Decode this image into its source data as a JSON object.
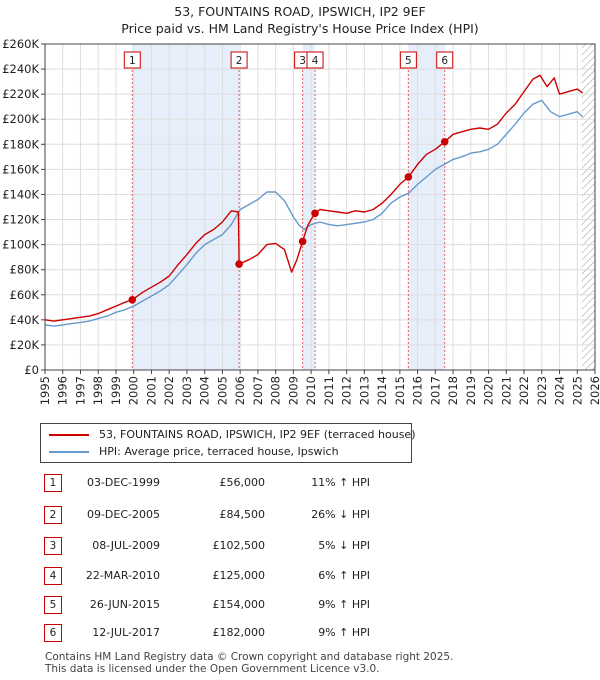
{
  "title_line1": "53, FOUNTAINS ROAD, IPSWICH, IP2 9EF",
  "title_line2": "Price paid vs. HM Land Registry's House Price Index (HPI)",
  "chart_data": {
    "type": "line",
    "xlim": [
      1995,
      2026
    ],
    "ylim": [
      0,
      260000
    ],
    "y_ticks": [
      0,
      20000,
      40000,
      60000,
      80000,
      100000,
      120000,
      140000,
      160000,
      180000,
      200000,
      220000,
      240000,
      260000
    ],
    "y_tick_labels": [
      "£0",
      "£20K",
      "£40K",
      "£60K",
      "£80K",
      "£100K",
      "£120K",
      "£140K",
      "£160K",
      "£180K",
      "£200K",
      "£220K",
      "£240K",
      "£260K"
    ],
    "x_ticks": [
      1995,
      1996,
      1997,
      1998,
      1999,
      2000,
      2001,
      2002,
      2003,
      2004,
      2005,
      2006,
      2007,
      2008,
      2009,
      2010,
      2011,
      2012,
      2013,
      2014,
      2015,
      2016,
      2017,
      2018,
      2019,
      2020,
      2021,
      2022,
      2023,
      2024,
      2025,
      2026
    ],
    "x_tick_labels": [
      "1995",
      "1996",
      "1997",
      "1998",
      "1999",
      "2000",
      "2001",
      "2002",
      "2003",
      "2004",
      "2005",
      "2006",
      "2007",
      "2008",
      "2009",
      "2010",
      "2011",
      "2012",
      "2013",
      "2014",
      "2015",
      "2016",
      "2017",
      "2018",
      "2019",
      "2020",
      "2021",
      "2022",
      "2023",
      "2024",
      "2025",
      "2026"
    ],
    "grid": true,
    "shaded_ranges": [
      [
        1999.92,
        2005.94
      ],
      [
        2009.52,
        2010.22
      ],
      [
        2015.48,
        2017.53
      ]
    ],
    "future_hatch_from": 2025.25,
    "series": [
      {
        "name": "53, FOUNTAINS ROAD, IPSWICH, IP2 9EF (terraced house)",
        "color": "#cc0000",
        "x": [
          1995.0,
          1995.5,
          1996.0,
          1996.5,
          1997.0,
          1997.5,
          1998.0,
          1998.5,
          1999.0,
          1999.5,
          1999.92,
          2000.5,
          2001.0,
          2001.5,
          2002.0,
          2002.5,
          2003.0,
          2003.5,
          2004.0,
          2004.5,
          2005.0,
          2005.5,
          2005.9,
          2005.94,
          2006.5,
          2007.0,
          2007.5,
          2008.0,
          2008.5,
          2008.9,
          2009.2,
          2009.52,
          2009.8,
          2010.0,
          2010.22,
          2010.5,
          2011.0,
          2011.5,
          2012.0,
          2012.5,
          2013.0,
          2013.5,
          2014.0,
          2014.5,
          2015.0,
          2015.48,
          2016.0,
          2016.5,
          2017.0,
          2017.53,
          2018.0,
          2018.5,
          2019.0,
          2019.5,
          2020.0,
          2020.5,
          2021.0,
          2021.5,
          2022.0,
          2022.5,
          2022.9,
          2023.3,
          2023.7,
          2024.0,
          2024.5,
          2025.0,
          2025.3
        ],
        "y": [
          40000,
          39000,
          40000,
          41000,
          42000,
          43000,
          45000,
          48000,
          51000,
          54000,
          56000,
          62000,
          66000,
          70000,
          75000,
          84000,
          92000,
          101000,
          108000,
          112000,
          118000,
          127000,
          126000,
          84500,
          88000,
          92000,
          100000,
          101000,
          96000,
          78000,
          88000,
          102500,
          115000,
          120000,
          125000,
          128000,
          127000,
          126000,
          125000,
          127000,
          126000,
          128000,
          133000,
          140000,
          148000,
          154000,
          164000,
          172000,
          176000,
          182000,
          188000,
          190000,
          192000,
          193000,
          192000,
          196000,
          205000,
          212000,
          222000,
          232000,
          235000,
          226000,
          233000,
          220000,
          222000,
          224000,
          221000
        ]
      },
      {
        "name": "HPI: Average price, terraced house, Ipswich",
        "color": "#6699cc",
        "x": [
          1995.0,
          1995.5,
          1996.0,
          1996.5,
          1997.0,
          1997.5,
          1998.0,
          1998.5,
          1999.0,
          1999.5,
          2000.0,
          2000.5,
          2001.0,
          2001.5,
          2002.0,
          2002.5,
          2003.0,
          2003.5,
          2004.0,
          2004.5,
          2005.0,
          2005.5,
          2006.0,
          2006.5,
          2007.0,
          2007.5,
          2008.0,
          2008.5,
          2009.0,
          2009.3,
          2009.6,
          2010.0,
          2010.5,
          2011.0,
          2011.5,
          2012.0,
          2012.5,
          2013.0,
          2013.5,
          2014.0,
          2014.5,
          2015.0,
          2015.5,
          2016.0,
          2016.5,
          2017.0,
          2017.5,
          2018.0,
          2018.5,
          2019.0,
          2019.5,
          2020.0,
          2020.5,
          2021.0,
          2021.5,
          2022.0,
          2022.5,
          2023.0,
          2023.5,
          2024.0,
          2024.5,
          2025.0,
          2025.3
        ],
        "y": [
          36000,
          35000,
          36000,
          37000,
          38000,
          39000,
          41000,
          43000,
          46000,
          48000,
          51000,
          55000,
          59000,
          63000,
          68000,
          76000,
          84000,
          93000,
          100000,
          104000,
          108000,
          116000,
          128000,
          132000,
          136000,
          142000,
          142000,
          135000,
          122000,
          116000,
          112000,
          116000,
          118000,
          116000,
          115000,
          116000,
          117000,
          118000,
          120000,
          125000,
          133000,
          138000,
          141000,
          148000,
          154000,
          160000,
          164000,
          168000,
          170000,
          173000,
          174000,
          176000,
          180000,
          188000,
          196000,
          205000,
          212000,
          215000,
          206000,
          202000,
          204000,
          206000,
          202000
        ]
      }
    ],
    "sales": [
      {
        "label": "1",
        "x": 1999.92,
        "y": 56000
      },
      {
        "label": "2",
        "x": 2005.94,
        "y": 84500
      },
      {
        "label": "3",
        "x": 2009.52,
        "y": 102500
      },
      {
        "label": "4",
        "x": 2010.22,
        "y": 125000
      },
      {
        "label": "5",
        "x": 2015.48,
        "y": 154000
      },
      {
        "label": "6",
        "x": 2017.53,
        "y": 182000
      }
    ]
  },
  "legend": {
    "items": [
      {
        "label": "53, FOUNTAINS ROAD, IPSWICH, IP2 9EF (terraced house)",
        "color": "#cc0000"
      },
      {
        "label": "HPI: Average price, terraced house, Ipswich",
        "color": "#6699cc"
      }
    ]
  },
  "transactions": [
    {
      "num": "1",
      "date": "03-DEC-1999",
      "price": "£56,000",
      "hpi": "11% ↑ HPI"
    },
    {
      "num": "2",
      "date": "09-DEC-2005",
      "price": "£84,500",
      "hpi": "26% ↓ HPI"
    },
    {
      "num": "3",
      "date": "08-JUL-2009",
      "price": "£102,500",
      "hpi": "5% ↓ HPI"
    },
    {
      "num": "4",
      "date": "22-MAR-2010",
      "price": "£125,000",
      "hpi": "6% ↑ HPI"
    },
    {
      "num": "5",
      "date": "26-JUN-2015",
      "price": "£154,000",
      "hpi": "9% ↑ HPI"
    },
    {
      "num": "6",
      "date": "12-JUL-2017",
      "price": "£182,000",
      "hpi": "9% ↑ HPI"
    }
  ],
  "footer": {
    "line1": "Contains HM Land Registry data © Crown copyright and database right 2025.",
    "line2": "This data is licensed under the Open Government Licence v3.0."
  }
}
